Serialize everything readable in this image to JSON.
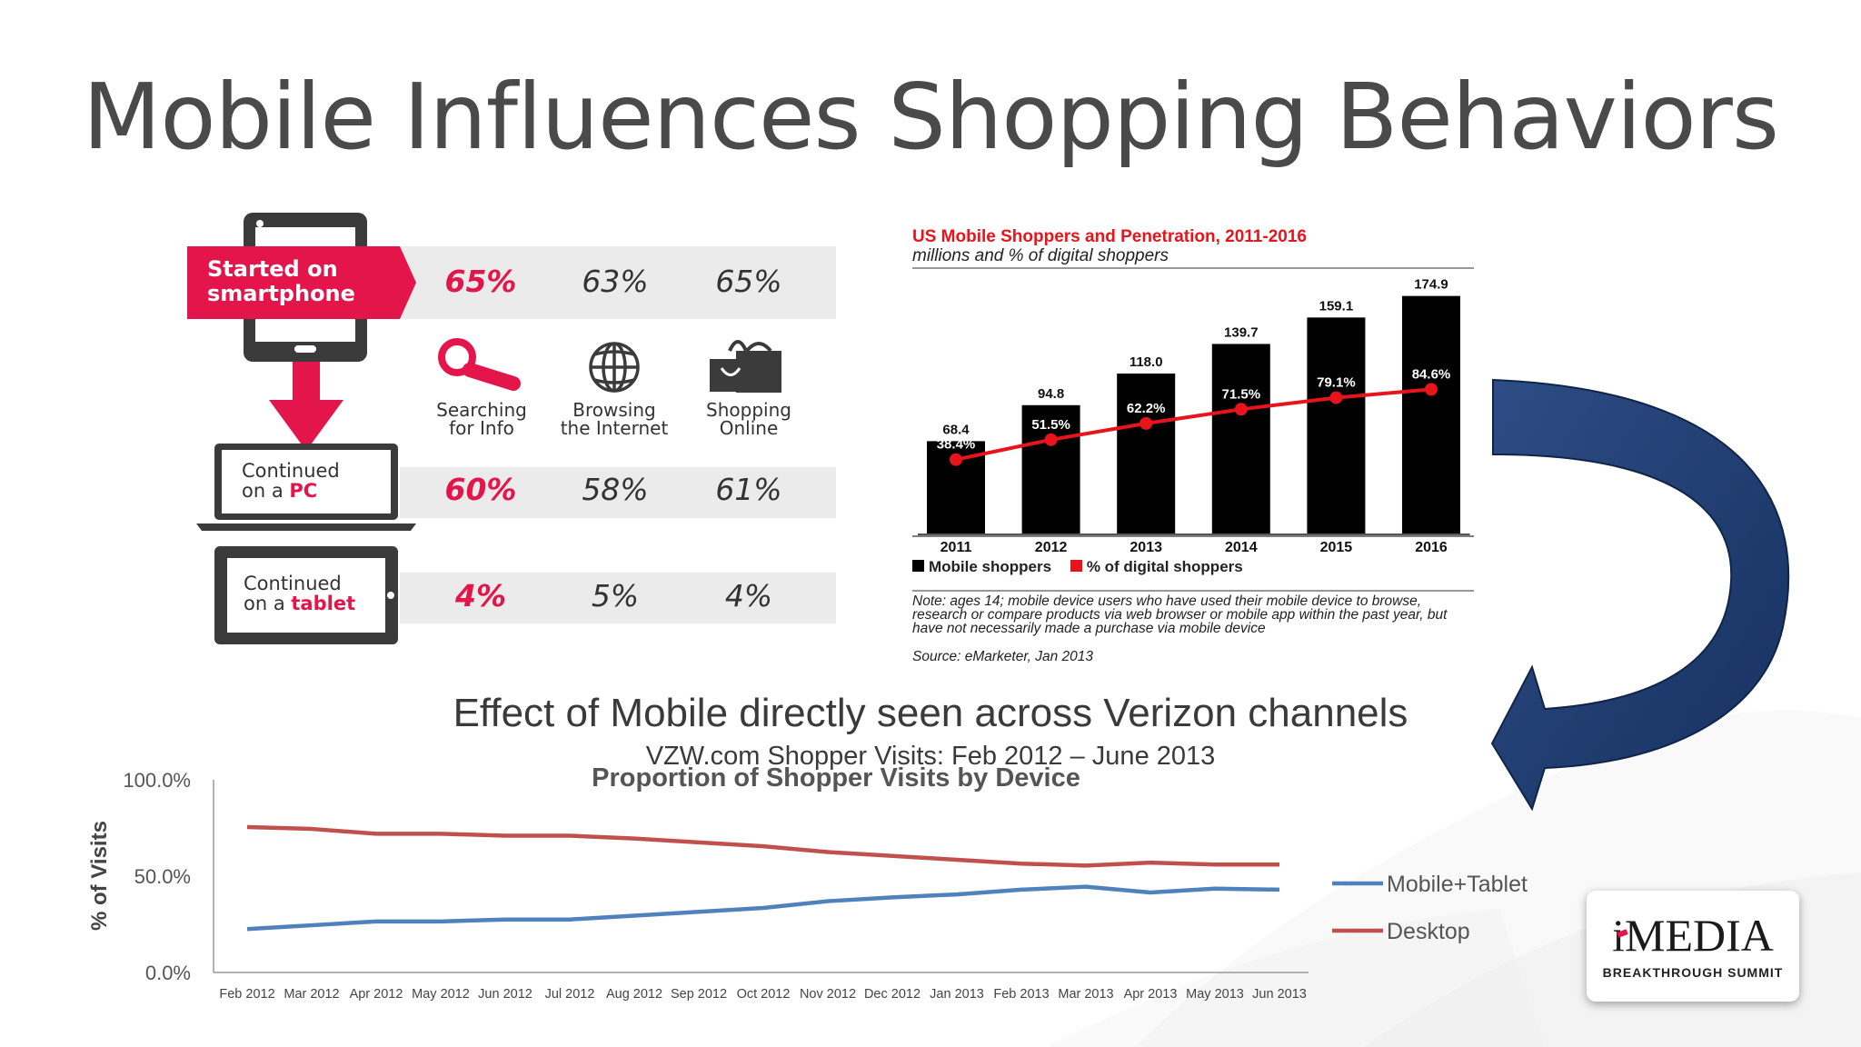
{
  "slide": {
    "title": "Mobile Influences Shopping Behaviors"
  },
  "infographic": {
    "started": {
      "line1": "Started on",
      "line2": "smartphone"
    },
    "categories": [
      {
        "label1": "Searching",
        "label2": "for Info",
        "icon": "magnifier-icon"
      },
      {
        "label1": "Browsing",
        "label2": "the Internet",
        "icon": "globe-icon"
      },
      {
        "label1": "Shopping",
        "label2": "Online",
        "icon": "shopping-bag-icon"
      }
    ],
    "started_values": [
      "65%",
      "63%",
      "65%"
    ],
    "pc": {
      "line1": "Continued",
      "line2_prefix": "on a ",
      "device": "PC",
      "values": [
        "60%",
        "58%",
        "61%"
      ]
    },
    "tablet": {
      "line1": "Continued",
      "line2_prefix": "on a ",
      "device": "tablet",
      "values": [
        "4%",
        "5%",
        "4%"
      ]
    },
    "accent_color": "#e3154a"
  },
  "emarketer": {
    "title": "US Mobile Shoppers and Penetration, 2011-2016",
    "subtitle": "millions and % of digital shoppers",
    "legend": [
      "Mobile shoppers",
      "% of digital shoppers"
    ],
    "note": "Note: ages 14; mobile device users who have used their mobile device to browse, research or compare products via web browser or mobile app within the past year, but have not necessarily made a purchase via mobile device",
    "source": "Source: eMarketer, Jan 2013"
  },
  "verizon": {
    "title": "Effect of Mobile directly seen across Verizon channels",
    "subtitle": "VZW.com Shopper Visits: Feb 2012 – June 2013",
    "chart_title": "Proportion of Shopper Visits by Device"
  },
  "logo": {
    "name": "iMEDIA",
    "tagline": "BREAKTHROUGH SUMMIT"
  },
  "chart_data": [
    {
      "type": "bar",
      "title": "US Mobile Shoppers and Penetration, 2011-2016",
      "subtitle": "millions and % of digital shoppers",
      "categories": [
        "2011",
        "2012",
        "2013",
        "2014",
        "2015",
        "2016"
      ],
      "series": [
        {
          "name": "Mobile shoppers",
          "values": [
            68.4,
            94.8,
            118.0,
            139.7,
            159.1,
            174.9
          ],
          "labels": [
            "68.4",
            "94.8",
            "118.0",
            "139.7",
            "159.1",
            "174.9"
          ],
          "color": "#000000"
        },
        {
          "name": "% of digital shoppers",
          "type": "line",
          "values": [
            38.4,
            51.5,
            62.2,
            71.5,
            79.1,
            84.6
          ],
          "labels": [
            "38.4%",
            "51.5%",
            "62.2%",
            "71.5%",
            "79.1%",
            "84.6%"
          ],
          "color": "#e8141b"
        }
      ],
      "ylim": [
        0,
        180
      ],
      "legend": "bottom-left"
    },
    {
      "type": "line",
      "title": "Proportion of Shopper Visits by Device",
      "xlabel": "",
      "ylabel": "% of Visits",
      "categories": [
        "Feb 2012",
        "Mar 2012",
        "Apr 2012",
        "May 2012",
        "Jun 2012",
        "Jul 2012",
        "Aug 2012",
        "Sep 2012",
        "Oct 2012",
        "Nov 2012",
        "Dec 2012",
        "Jan 2013",
        "Feb 2013",
        "Mar 2013",
        "Apr 2013",
        "May 2013",
        "Jun 2013"
      ],
      "yticks": [
        "0.0%",
        "50.0%",
        "100.0%"
      ],
      "ylim": [
        0,
        100
      ],
      "series": [
        {
          "name": "Mobile+Tablet",
          "color": "#4f81bd",
          "values": [
            22.5,
            24.5,
            26.5,
            26.5,
            27.5,
            27.5,
            29.5,
            31.5,
            33.5,
            37,
            39,
            40.5,
            43,
            44.5,
            41.5,
            43.5,
            43
          ]
        },
        {
          "name": "Desktop",
          "color": "#c0504d",
          "values": [
            75.5,
            74.5,
            72,
            72,
            71,
            71,
            69.5,
            67.5,
            65.5,
            62.5,
            60.5,
            58.5,
            56.5,
            55.5,
            57,
            56,
            56
          ]
        }
      ],
      "legend": "right"
    }
  ]
}
